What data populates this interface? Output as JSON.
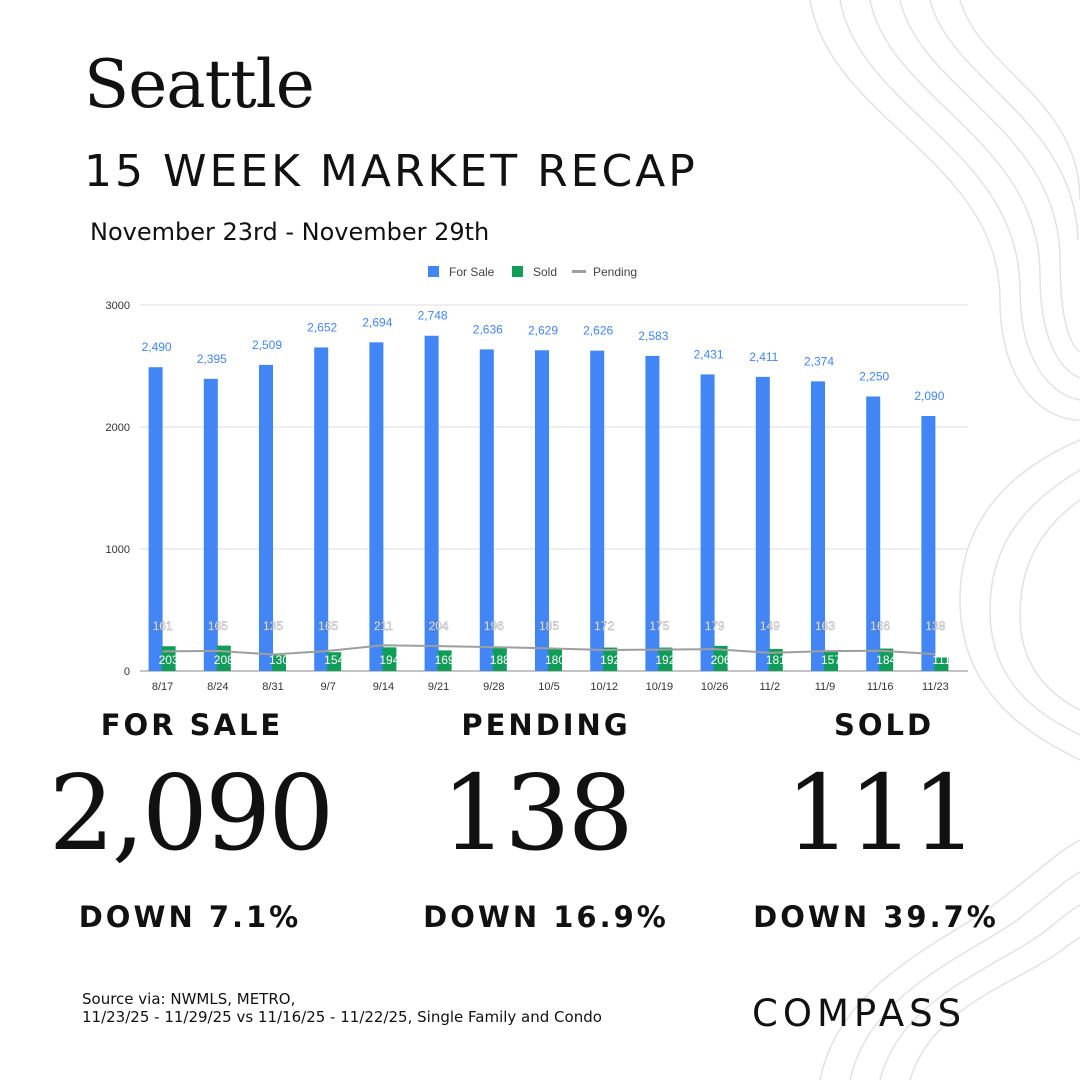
{
  "header": {
    "city": "Seattle",
    "title": "15 WEEK MARKET RECAP",
    "date_range": "November 23rd - November 29th"
  },
  "colors": {
    "for_sale": "#4285f4",
    "sold": "#0f9d58",
    "pending": "#9e9e9e",
    "text": "#111111",
    "grid": "#dcdcdc"
  },
  "chart_data": {
    "type": "bar",
    "categories": [
      "8/17",
      "8/24",
      "8/31",
      "9/7",
      "9/14",
      "9/21",
      "9/28",
      "10/5",
      "10/12",
      "10/19",
      "10/26",
      "11/2",
      "11/9",
      "11/16",
      "11/23"
    ],
    "series": [
      {
        "name": "For Sale",
        "type": "bar",
        "values": [
          2490,
          2395,
          2509,
          2652,
          2694,
          2748,
          2636,
          2629,
          2626,
          2583,
          2431,
          2411,
          2374,
          2250,
          2090
        ],
        "labels": [
          "2,490",
          "2,395",
          "2,509",
          "2,652",
          "2,694",
          "2,748",
          "2,636",
          "2,629",
          "2,626",
          "2,583",
          "2,431",
          "2,411",
          "2,374",
          "2,250",
          "2,090"
        ]
      },
      {
        "name": "Sold",
        "type": "bar",
        "values": [
          203,
          208,
          130,
          154,
          194,
          169,
          188,
          180,
          192,
          192,
          206,
          181,
          157,
          184,
          111
        ],
        "labels": [
          "203",
          "208",
          "130",
          "154",
          "194",
          "169",
          "188",
          "180",
          "192",
          "192",
          "206",
          "181",
          "157",
          "184",
          "111"
        ]
      },
      {
        "name": "Pending",
        "type": "line",
        "values": [
          161,
          165,
          135,
          165,
          211,
          204,
          196,
          185,
          172,
          175,
          179,
          149,
          163,
          166,
          138
        ],
        "labels": [
          "161",
          "165",
          "135",
          "165",
          "211",
          "204",
          "196",
          "185",
          "172",
          "175",
          "179",
          "149",
          "163",
          "166",
          "138"
        ]
      }
    ],
    "yticks": [
      "0",
      "1000",
      "2000",
      "3000"
    ],
    "ylim": [
      0,
      3000
    ],
    "legend": [
      "For Sale",
      "Sold",
      "Pending"
    ],
    "legend_position": "top",
    "grid": true
  },
  "stats": {
    "for_sale": {
      "label": "FOR SALE",
      "value": "2,090",
      "change": "DOWN 7.1%"
    },
    "pending": {
      "label": "PENDING",
      "value": "138",
      "change": "DOWN 16.9%"
    },
    "sold": {
      "label": "SOLD",
      "value": "111",
      "change": "DOWN 39.7%"
    }
  },
  "footer": {
    "source_line1": "Source via: NWMLS, METRO,",
    "source_line2": "11/23/25 - 11/29/25 vs 11/16/25 - 11/22/25, Single Family and Condo",
    "brand": "COMPASS"
  }
}
